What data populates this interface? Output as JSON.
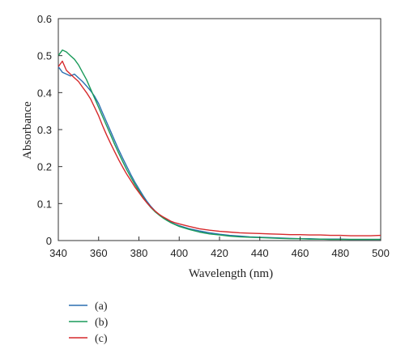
{
  "chart_data": {
    "type": "line",
    "xlabel": "Wavelength (nm)",
    "ylabel": "Absorbance",
    "xlim": [
      340,
      500
    ],
    "ylim": [
      0,
      0.6
    ],
    "x_ticks": [
      340,
      360,
      380,
      400,
      420,
      440,
      460,
      480,
      500
    ],
    "y_ticks": [
      0,
      0.1,
      0.2,
      0.3,
      0.4,
      0.5,
      0.6
    ],
    "x_tick_labels": [
      "340",
      "360",
      "380",
      "400",
      "420",
      "440",
      "460",
      "480",
      "500"
    ],
    "y_tick_labels": [
      "0",
      "0.1",
      "0.2",
      "0.3",
      "0.4",
      "0.5",
      "0.6"
    ],
    "grid": false,
    "legend_position": "bottom-left",
    "series": [
      {
        "name": "(a)",
        "color": "#2a6fb0",
        "x": [
          340,
          342,
          344,
          346,
          348,
          350,
          352,
          354,
          356,
          358,
          360,
          362,
          364,
          366,
          368,
          370,
          372,
          374,
          376,
          378,
          380,
          382,
          384,
          386,
          388,
          390,
          392,
          394,
          396,
          398,
          400,
          405,
          410,
          415,
          420,
          425,
          430,
          435,
          440,
          445,
          450,
          455,
          460,
          465,
          470,
          475,
          480,
          485,
          490,
          495,
          500
        ],
        "y": [
          0.47,
          0.455,
          0.45,
          0.445,
          0.45,
          0.44,
          0.43,
          0.418,
          0.405,
          0.39,
          0.37,
          0.345,
          0.32,
          0.295,
          0.27,
          0.245,
          0.222,
          0.2,
          0.178,
          0.158,
          0.14,
          0.122,
          0.106,
          0.092,
          0.08,
          0.07,
          0.062,
          0.055,
          0.049,
          0.044,
          0.04,
          0.032,
          0.026,
          0.021,
          0.017,
          0.014,
          0.012,
          0.01,
          0.009,
          0.008,
          0.007,
          0.006,
          0.005,
          0.005,
          0.004,
          0.004,
          0.004,
          0.003,
          0.003,
          0.003,
          0.003
        ]
      },
      {
        "name": "(b)",
        "color": "#1a9a5a",
        "x": [
          340,
          342,
          344,
          346,
          348,
          350,
          352,
          354,
          356,
          358,
          360,
          362,
          364,
          366,
          368,
          370,
          372,
          374,
          376,
          378,
          380,
          382,
          384,
          386,
          388,
          390,
          392,
          394,
          396,
          398,
          400,
          405,
          410,
          415,
          420,
          425,
          430,
          435,
          440,
          445,
          450,
          455,
          460,
          465,
          470,
          475,
          480,
          485,
          490,
          495,
          500
        ],
        "y": [
          0.5,
          0.515,
          0.51,
          0.5,
          0.49,
          0.475,
          0.455,
          0.435,
          0.41,
          0.385,
          0.36,
          0.335,
          0.31,
          0.285,
          0.26,
          0.236,
          0.213,
          0.191,
          0.171,
          0.152,
          0.134,
          0.117,
          0.102,
          0.089,
          0.078,
          0.069,
          0.061,
          0.054,
          0.048,
          0.043,
          0.038,
          0.03,
          0.023,
          0.018,
          0.015,
          0.012,
          0.01,
          0.009,
          0.008,
          0.007,
          0.006,
          0.005,
          0.005,
          0.004,
          0.004,
          0.003,
          0.003,
          0.003,
          0.003,
          0.003,
          0.003
        ]
      },
      {
        "name": "(c)",
        "color": "#d6282b",
        "x": [
          340,
          342,
          344,
          346,
          348,
          350,
          352,
          354,
          356,
          358,
          360,
          362,
          364,
          366,
          368,
          370,
          372,
          374,
          376,
          378,
          380,
          382,
          384,
          386,
          388,
          390,
          392,
          394,
          396,
          398,
          400,
          405,
          410,
          415,
          420,
          425,
          430,
          435,
          440,
          445,
          450,
          455,
          460,
          465,
          470,
          475,
          480,
          485,
          490,
          495,
          500
        ],
        "y": [
          0.47,
          0.485,
          0.46,
          0.45,
          0.44,
          0.43,
          0.415,
          0.4,
          0.383,
          0.36,
          0.337,
          0.31,
          0.285,
          0.262,
          0.24,
          0.218,
          0.198,
          0.179,
          0.162,
          0.145,
          0.13,
          0.115,
          0.102,
          0.09,
          0.08,
          0.071,
          0.064,
          0.058,
          0.052,
          0.048,
          0.045,
          0.038,
          0.032,
          0.028,
          0.025,
          0.023,
          0.021,
          0.02,
          0.019,
          0.018,
          0.017,
          0.016,
          0.016,
          0.015,
          0.015,
          0.014,
          0.014,
          0.013,
          0.013,
          0.013,
          0.014
        ]
      }
    ]
  }
}
